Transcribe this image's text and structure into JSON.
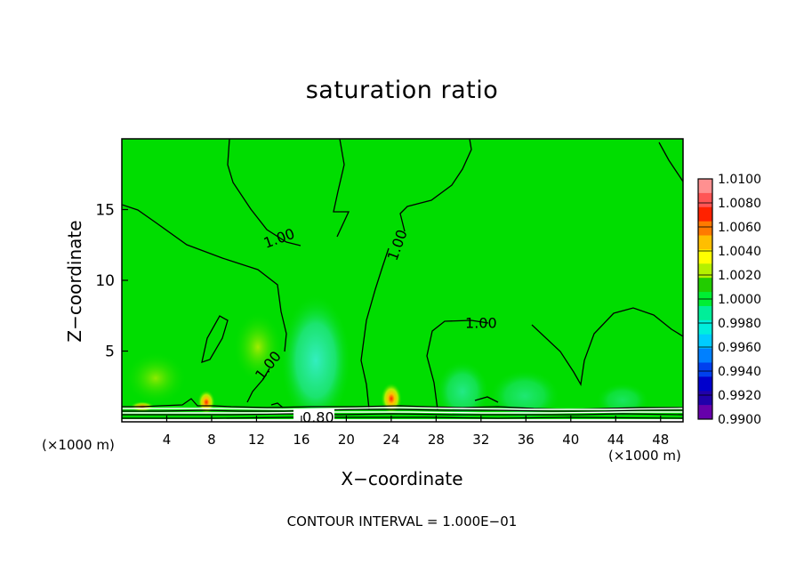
{
  "chart_data": {
    "type": "heatmap",
    "title": "saturation ratio",
    "xlabel": "X−coordinate",
    "ylabel": "Z−coordinate",
    "x_unit_label": "(×1000 m)",
    "x_ticks": [
      4,
      8,
      12,
      16,
      20,
      24,
      28,
      32,
      36,
      40,
      44,
      48
    ],
    "y_ticks": [
      5,
      10,
      15
    ],
    "xlim": [
      0,
      50
    ],
    "ylim": [
      0,
      20
    ],
    "contour_labels": [
      {
        "text": "1.00",
        "x": 14.0,
        "z": 13.0
      },
      {
        "text": "1.00",
        "x": 24.5,
        "z": 12.5
      },
      {
        "text": "1.00",
        "x": 32.0,
        "z": 7.0
      },
      {
        "text": "1.00",
        "x": 13.0,
        "z": 4.0
      },
      {
        "text": "0.80",
        "x": 17.5,
        "z": 0.35
      }
    ],
    "footer": "CONTOUR INTERVAL = 1.000E−01",
    "colorbar": {
      "labels": [
        "1.0100",
        "1.0080",
        "1.0060",
        "1.0040",
        "1.0020",
        "1.0000",
        "0.9980",
        "0.9960",
        "0.9940",
        "0.9920",
        "0.9900"
      ],
      "colors": [
        "#ff9090",
        "#ff5555",
        "#ff2200",
        "#ff7a00",
        "#ffbe00",
        "#ffff00",
        "#b4f000",
        "#22cc00",
        "#00ee33",
        "#00ee99",
        "#00eedd",
        "#00ccff",
        "#0080ff",
        "#0040ee",
        "#0000cc",
        "#2000aa",
        "#6600aa"
      ],
      "background_color": "#00dd00"
    }
  }
}
